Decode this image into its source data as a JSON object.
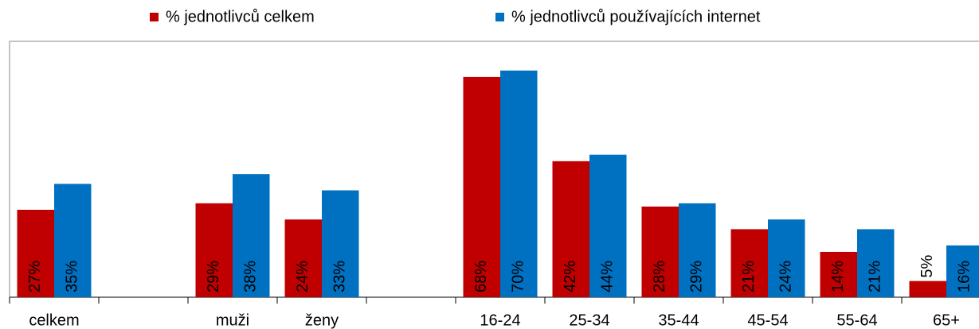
{
  "chart_data": {
    "type": "bar",
    "categories": [
      "celkem",
      null,
      "muži",
      "ženy",
      null,
      "16-24",
      "25-34",
      "35-44",
      "45-54",
      "55-64",
      "65+"
    ],
    "series": [
      {
        "name": "% jednotlivců celkem",
        "color": "#c00000",
        "values": [
          27,
          null,
          29,
          24,
          null,
          68,
          42,
          28,
          21,
          14,
          5
        ],
        "value_labels": [
          "27%",
          null,
          "29%",
          "24%",
          null,
          "68%",
          "42%",
          "28%",
          "21%",
          "14%",
          "5%"
        ]
      },
      {
        "name": "% jednotlivců používajících internet",
        "color": "#0070c0",
        "values": [
          35,
          null,
          38,
          33,
          null,
          70,
          44,
          29,
          24,
          21,
          16
        ],
        "value_labels": [
          "35%",
          null,
          "38%",
          "33%",
          null,
          "70%",
          "44%",
          "29%",
          "24%",
          "21%",
          "16%"
        ]
      }
    ],
    "ylim": [
      0,
      80
    ],
    "legend": "top"
  }
}
